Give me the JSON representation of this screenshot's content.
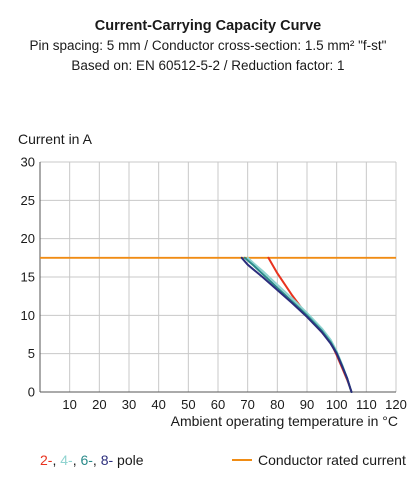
{
  "chart_data": {
    "type": "line",
    "title": "Current-Carrying Capacity Curve",
    "subtitle": "Pin spacing: 5 mm / Conductor cross-section: 1.5 mm² \"f-st\"",
    "basis": "Based on: EN 60512-5-2 / Reduction factor: 1",
    "xlabel": "Ambient operating temperature in °C",
    "ylabel": "Current in A",
    "xlim": [
      0,
      120
    ],
    "ylim": [
      0,
      30
    ],
    "x_ticks": [
      10,
      20,
      30,
      40,
      50,
      60,
      70,
      80,
      90,
      100,
      110,
      120
    ],
    "y_ticks": [
      0,
      5,
      10,
      15,
      20,
      25,
      30
    ],
    "grid": true,
    "series": [
      {
        "name": "2-",
        "color": "#e8321e",
        "x": [
          77,
          80,
          85,
          90,
          95,
          98,
          100,
          102,
          103.5,
          104.5,
          105
        ],
        "y": [
          17.5,
          15.5,
          12.6,
          10.0,
          7.8,
          6.5,
          4.8,
          3.0,
          1.6,
          0.6,
          0
        ]
      },
      {
        "name": "4-",
        "color": "#8fd3d0",
        "x": [
          70,
          72,
          75,
          80,
          85,
          90,
          95,
          98,
          100,
          102,
          103.5,
          104.5,
          105
        ],
        "y": [
          17.5,
          16.8,
          15.8,
          14.0,
          12.2,
          10.3,
          8.3,
          6.8,
          5.3,
          3.4,
          1.8,
          0.6,
          0
        ]
      },
      {
        "name": "6-",
        "color": "#2a8a8a",
        "x": [
          69,
          72,
          75,
          80,
          85,
          90,
          95,
          98,
          100,
          102,
          103.5,
          104.5,
          105
        ],
        "y": [
          17.5,
          16.5,
          15.4,
          13.6,
          11.8,
          10.0,
          8.0,
          6.5,
          5.1,
          3.3,
          1.8,
          0.6,
          0
        ]
      },
      {
        "name": "8-",
        "color": "#2b2d7c",
        "x": [
          68,
          70,
          75,
          80,
          85,
          90,
          95,
          98,
          100,
          102,
          103.5,
          104.5,
          105
        ],
        "y": [
          17.5,
          16.6,
          15.0,
          13.3,
          11.6,
          9.8,
          7.8,
          6.3,
          5.0,
          3.2,
          1.8,
          0.6,
          0
        ]
      }
    ],
    "rated_current": {
      "name": "Conductor rated current",
      "value": 17.5,
      "color": "#f08c14"
    }
  },
  "legend": {
    "poles": [
      {
        "text": "2-",
        "color": "#e8321e"
      },
      {
        "text": "4-",
        "color": "#8fd3d0"
      },
      {
        "text": "6-",
        "color": "#2a8a8a"
      },
      {
        "text": "8-",
        "color": "#2b2d7c"
      }
    ],
    "poles_suffix": "pole",
    "rated_label": "Conductor rated current"
  }
}
